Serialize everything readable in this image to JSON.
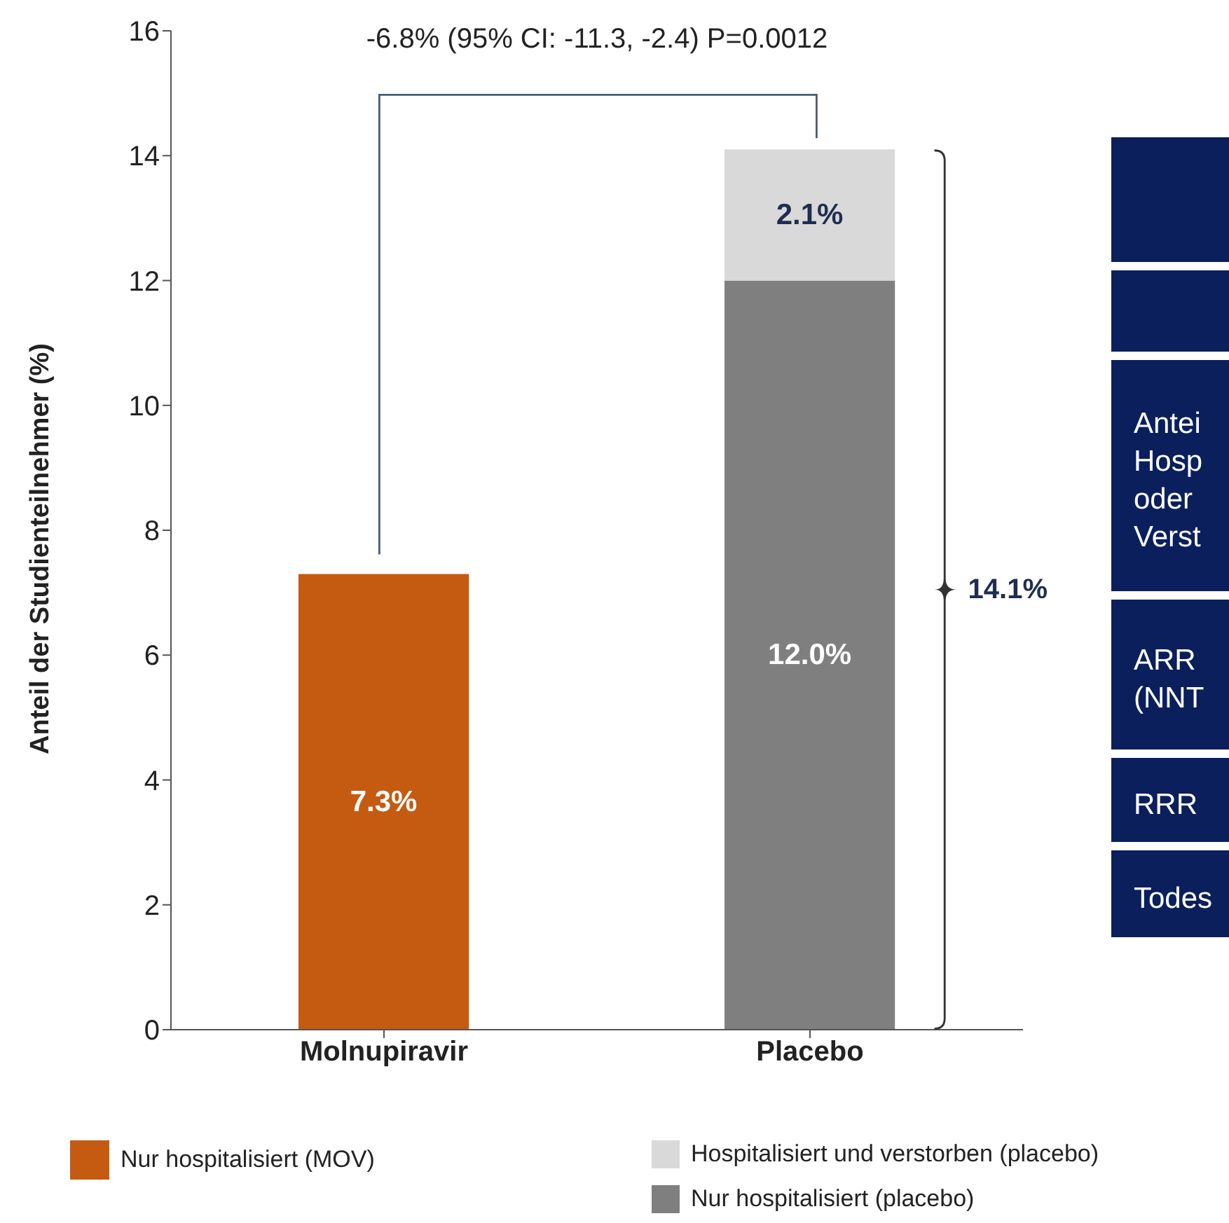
{
  "chart_data": {
    "type": "bar",
    "stacked": true,
    "categories": [
      "Molnupiravir",
      "Placebo"
    ],
    "ylabel": "Anteil der Studienteilnehmer (%)",
    "ylim": [
      0,
      16
    ],
    "yticks": [
      0,
      2,
      4,
      6,
      8,
      10,
      12,
      14,
      16
    ],
    "legend": "bottom",
    "series": [
      {
        "name": "Nur hospitalisiert (MOV)",
        "color": "#c55a11",
        "values": [
          7.3,
          null
        ],
        "value_labels": [
          "7.3%",
          null
        ]
      },
      {
        "name": "Nur hospitalisiert (placebo)",
        "color": "#7f7f7f",
        "values": [
          null,
          12.0
        ],
        "value_labels": [
          null,
          "12.0%"
        ]
      },
      {
        "name": "Hospitalisiert und verstorben (placebo)",
        "color": "#d9d9d9",
        "values": [
          null,
          2.1
        ],
        "value_labels": [
          null,
          "2.1%"
        ]
      }
    ],
    "totals": [
      null,
      "14.1%"
    ],
    "annotations": [
      "-6.8% (95% CI: -11.3, -2.4) P=0.0012",
      "Antei\nHosp\noder\nVerst",
      "ARR\n(NNT",
      "RRR",
      "Todes"
    ]
  }
}
